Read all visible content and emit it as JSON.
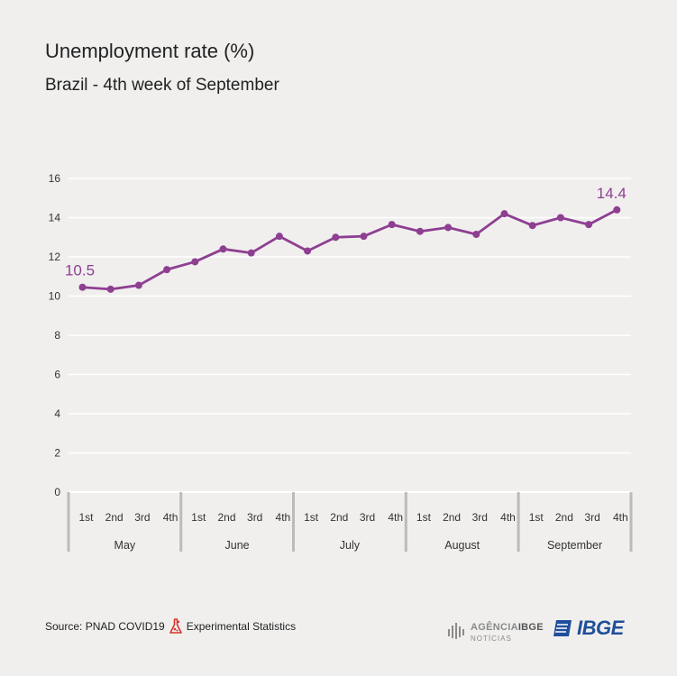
{
  "title": "Unemployment rate (%)",
  "subtitle": "Brazil - 4th week of September",
  "source_label": "Source: PNAD COVID19",
  "experimental_label": "Experimental Statistics",
  "logos": {
    "agencia_word": "AGÊNCIA",
    "agencia_ibge": "IBGE",
    "agencia_sub": "NOTÍCIAS",
    "ibge": "IBGE"
  },
  "colors": {
    "line": "#8e3f91",
    "grid": "#ffffff",
    "axis": "#bbbbbb",
    "text": "#333333"
  },
  "chart_data": {
    "type": "line",
    "title": "Unemployment rate (%)",
    "subtitle": "Brazil - 4th week of September",
    "ylim": [
      0,
      16
    ],
    "yticks": [
      0,
      2,
      4,
      6,
      8,
      10,
      12,
      14,
      16
    ],
    "grid": true,
    "weeks": [
      "1st",
      "2nd",
      "3rd",
      "4th",
      "1st",
      "2nd",
      "3rd",
      "4th",
      "1st",
      "2nd",
      "3rd",
      "4th",
      "1st",
      "2nd",
      "3rd",
      "4th",
      "1st",
      "2nd",
      "3rd",
      "4th"
    ],
    "months": [
      "May",
      "June",
      "July",
      "August",
      "September"
    ],
    "series": [
      {
        "values": [
          10.45,
          10.35,
          10.55,
          11.35,
          11.75,
          12.4,
          12.2,
          13.05,
          12.3,
          13.0,
          13.05,
          13.65,
          13.3,
          13.5,
          13.15,
          14.2,
          13.6,
          14.0,
          13.65,
          14.4
        ]
      }
    ],
    "data_labels": [
      {
        "index": 0,
        "text": "10.5"
      },
      {
        "index": 19,
        "text": "14.4"
      }
    ]
  }
}
